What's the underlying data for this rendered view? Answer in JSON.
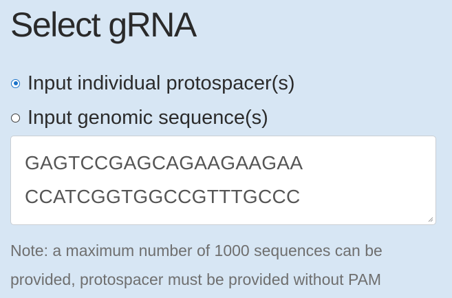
{
  "section": {
    "title": "Select gRNA"
  },
  "input_mode": {
    "options": [
      {
        "label": "Input individual protospacer(s)",
        "checked": true
      },
      {
        "label": "Input genomic sequence(s)",
        "checked": false
      }
    ]
  },
  "sequences": {
    "lines": [
      "GAGTCCGAGCAGAAGAAGAA",
      "CCATCGGTGGCCGTTTGCCC"
    ]
  },
  "note": {
    "text": "Note: a maximum number of 1000 sequences can be provided, protospacer must be provided without PAM"
  },
  "colors": {
    "background": "#d7e6f4",
    "radio_accent": "#1a73c9"
  }
}
